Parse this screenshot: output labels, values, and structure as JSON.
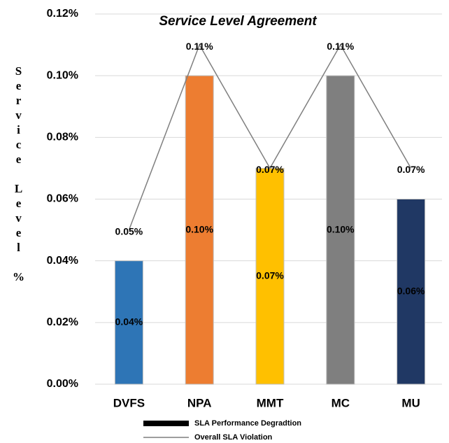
{
  "chart_data": {
    "type": "bar",
    "title": "Service Level Agreement",
    "y_label": "Service Level %",
    "categories": [
      "DVFS",
      "NPA",
      "MMT",
      "MC",
      "MU"
    ],
    "series": [
      {
        "name": "SLA Performance Degradtion",
        "type": "bar",
        "colors": [
          "#2e75b6",
          "#ed7d31",
          "#ffc000",
          "#7f7f7f",
          "#203864"
        ],
        "legend_color": "#000000",
        "values": [
          0.04,
          0.1,
          0.07,
          0.1,
          0.06
        ],
        "value_labels": [
          "0.04%",
          "0.10%",
          "0.07%",
          "0.10%",
          "0.06%"
        ]
      },
      {
        "name": "Overall SLA Violation",
        "type": "line",
        "color": "#7f7f7f",
        "values": [
          0.05,
          0.11,
          0.07,
          0.11,
          0.07
        ],
        "value_labels": [
          "0.05%",
          "0.11%",
          "0.07%",
          "0.11%",
          "0.07%"
        ]
      }
    ],
    "ylim": [
      0,
      0.12
    ],
    "yticks": [
      {
        "value": 0,
        "label": "0.00%"
      },
      {
        "value": 0.02,
        "label": "0.02%"
      },
      {
        "value": 0.04,
        "label": "0.04%"
      },
      {
        "value": 0.06,
        "label": "0.06%"
      },
      {
        "value": 0.08,
        "label": "0.08%"
      },
      {
        "value": 0.1,
        "label": "0.10%"
      },
      {
        "value": 0.12,
        "label": "0.12%"
      }
    ],
    "grid": true
  }
}
